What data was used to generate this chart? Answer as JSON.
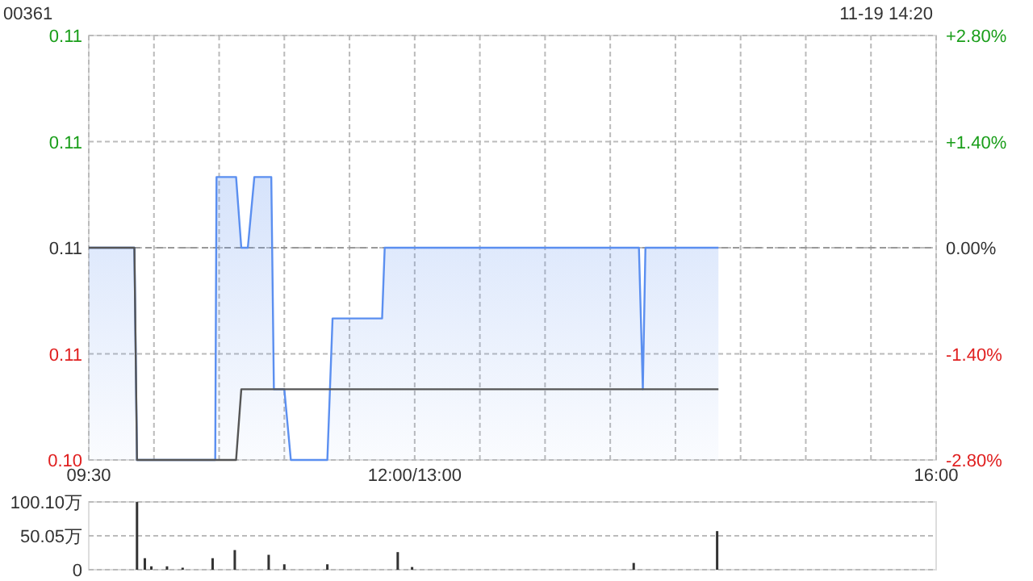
{
  "chart_data": [
    {
      "type": "area",
      "title": "00361",
      "annotations": [
        "11-19 14:20"
      ],
      "xlim": [
        9.5,
        16
      ],
      "xticks": [
        {
          "value": 9.5,
          "label": "09:30"
        },
        {
          "value": 10,
          "label": null
        },
        {
          "value": 10.5,
          "label": null
        },
        {
          "value": 11,
          "label": null
        },
        {
          "value": 11.5,
          "label": null
        },
        {
          "value": 12,
          "label": "12:00/13:00"
        },
        {
          "value": 12.5,
          "label": null
        },
        {
          "value": 13,
          "label": null
        },
        {
          "value": 13.5,
          "label": null
        },
        {
          "value": 14,
          "label": null
        },
        {
          "value": 14.5,
          "label": null
        },
        {
          "value": 15,
          "label": null
        },
        {
          "value": 15.5,
          "label": null
        },
        {
          "value": 16,
          "label": "16:00"
        }
      ],
      "ylim": [
        0.104,
        0.11
      ],
      "yticks": [
        {
          "value": 0.104,
          "label": "0.10"
        },
        {
          "value": 0.1055,
          "label": "0.11"
        },
        {
          "value": 0.107,
          "label": "0.11"
        },
        {
          "value": 0.1085,
          "label": "0.11"
        },
        {
          "value": 0.11,
          "label": "0.11"
        }
      ],
      "y2lim": [
        -2.8,
        2.8
      ],
      "y2ticks": [
        {
          "value": -2.8,
          "label": "-2.80%"
        },
        {
          "value": -1.4,
          "label": "-1.40%"
        },
        {
          "value": 0,
          "label": "0.00%"
        },
        {
          "value": 1.4,
          "label": "+1.40%"
        },
        {
          "value": 2.8,
          "label": "+2.80%"
        }
      ],
      "grid": true,
      "ref_lines": [
        {
          "axis": "y",
          "value": 0.107,
          "color": "#999999",
          "line_style": "dashed"
        }
      ],
      "series": [
        {
          "color": "#5b8ff0",
          "x": [
            9.5,
            9.85,
            9.87,
            10.47,
            10.48,
            10.63,
            10.67,
            10.72,
            10.77,
            10.9,
            10.92,
            11.0,
            11.05,
            11.33,
            11.37,
            11.75,
            11.77,
            13.72,
            13.75,
            13.77,
            14.33
          ],
          "values": [
            0.107,
            0.107,
            0.104,
            0.104,
            0.108,
            0.108,
            0.107,
            0.107,
            0.108,
            0.108,
            0.105,
            0.105,
            0.104,
            0.104,
            0.106,
            0.106,
            0.107,
            0.107,
            0.105,
            0.107,
            0.107
          ]
        },
        {
          "type": "line",
          "color": "#555555",
          "x": [
            9.5,
            9.85,
            9.87,
            10.63,
            10.67,
            14.33
          ],
          "values": [
            0.107,
            0.107,
            0.104,
            0.104,
            0.105,
            0.105
          ]
        }
      ]
    },
    {
      "type": "bar",
      "xlim": [
        9.5,
        16
      ],
      "ylim": [
        0,
        100.1
      ],
      "yticks": [
        0,
        {
          "value": 50.05,
          "label": "50.05万"
        },
        {
          "value": 100.1,
          "label": "100.10万"
        }
      ],
      "tick_labels": "y",
      "grid": "y",
      "series": [
        {
          "color": "#333333",
          "x": [
            9.87,
            9.93,
            9.98,
            10.1,
            10.22,
            10.45,
            10.62,
            10.88,
            11.0,
            11.33,
            11.87,
            11.98,
            13.68,
            14.32
          ],
          "values": [
            100,
            17,
            5,
            5,
            3,
            17,
            29,
            22,
            8,
            8,
            26,
            4,
            10,
            57
          ]
        }
      ]
    }
  ]
}
